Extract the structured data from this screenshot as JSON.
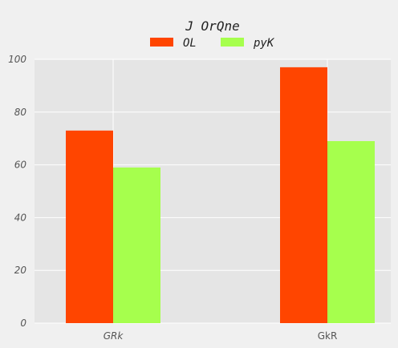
{
  "chart_data": {
    "type": "bar",
    "title": "J OrQne",
    "categories": [
      "GRk",
      "GkR"
    ],
    "series": [
      {
        "name": "OL",
        "values": [
          73,
          97
        ],
        "color": "#ff4500"
      },
      {
        "name": "pyK",
        "values": [
          59,
          69
        ],
        "color": "#a6ff4d"
      }
    ],
    "ylim": [
      0,
      100
    ],
    "yticks": [
      "0",
      "20",
      "40",
      "60",
      "80",
      "100"
    ],
    "grid": true,
    "legend_position": "top-center",
    "background": "#e5e5e5"
  }
}
